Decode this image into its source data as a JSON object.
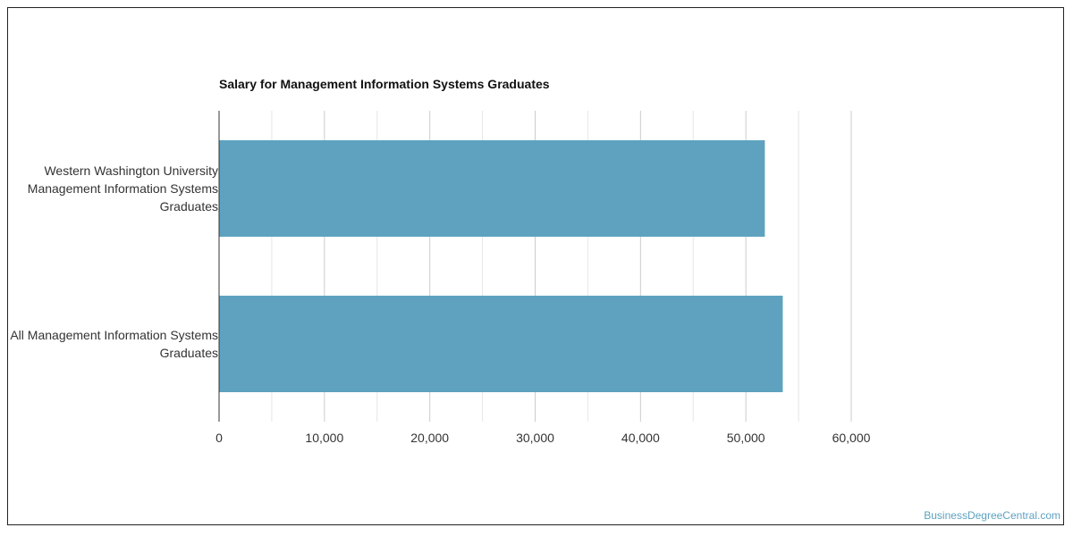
{
  "chart_data": {
    "type": "bar",
    "orientation": "horizontal",
    "title": "Salary for Management Information Systems Graduates",
    "categories": [
      "Western Washington University Management Information Systems Graduates",
      "All Management Information Systems Graduates"
    ],
    "values": [
      51800,
      53500
    ],
    "xlim": [
      0,
      60000
    ],
    "x_ticks": [
      "0",
      "10,000",
      "20,000",
      "30,000",
      "40,000",
      "50,000",
      "60,000"
    ],
    "xlabel": "",
    "ylabel": "",
    "grid": true,
    "bar_color": "#5ea2c0"
  },
  "source": "BusinessDegreeCentral.com"
}
